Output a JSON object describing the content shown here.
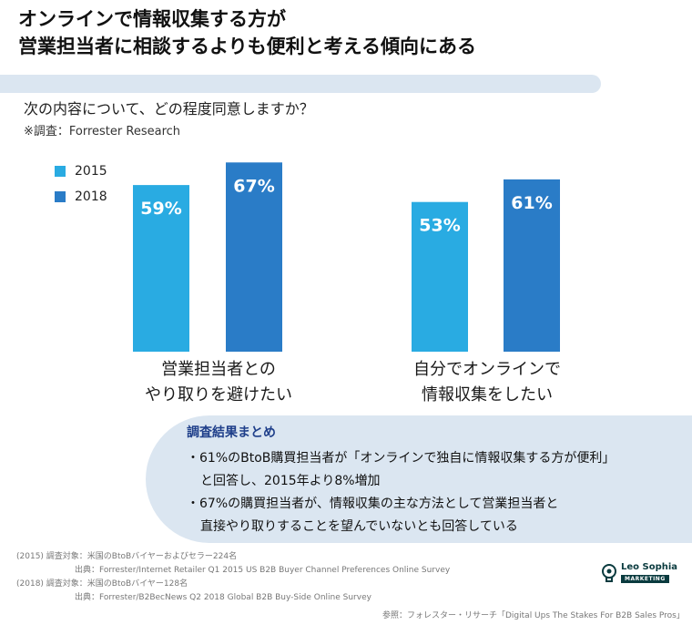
{
  "title": {
    "line1": "オンラインで情報収集する方が",
    "line2": "営業担当者に相談するよりも便利と考える傾向にある"
  },
  "question": "次の内容について、どの程度同意しますか？",
  "source_note": "※調査：Forrester Research",
  "colors": {
    "y2015": "#29abe2",
    "y2018": "#2a7cc7",
    "band": "#dbe6f1",
    "accent": "#1f3f8a"
  },
  "chart_data": {
    "type": "bar",
    "categories": [
      "営業担当者との\nやり取りを避けたい",
      "自分でオンラインで\n情報収集をしたい"
    ],
    "series": [
      {
        "name": "2015",
        "values": [
          59,
          53
        ],
        "labels": [
          "59%",
          "53%"
        ]
      },
      {
        "name": "2018",
        "values": [
          67,
          61
        ],
        "labels": [
          "67%",
          "61%"
        ]
      }
    ],
    "unit": "%",
    "legend": "top-left",
    "grid": false
  },
  "legend": {
    "y2015": "2015",
    "y2018": "2018"
  },
  "categories_text": {
    "cat1_line1": "営業担当者との",
    "cat1_line2": "やり取りを避けたい",
    "cat2_line1": "自分でオンラインで",
    "cat2_line2": "情報収集をしたい"
  },
  "summary": {
    "title": "調査結果まとめ",
    "b1_line1": "・61%のBtoB購買担当者が「オンラインで独自に情報収集する方が便利」",
    "b1_line2": "と回答し、2015年より8%増加",
    "b2_line1": "・67%の購買担当者が、情報収集の主な方法として営業担当者と",
    "b2_line2": "直接やり取りすることを望んでいないとも回答している"
  },
  "footnotes": {
    "f1": "(2015) 調査対象：米国のBtoBバイヤーおよびセラー224名",
    "f2": "出典：Forrester/Internet Retailer Q1 2015 US B2B Buyer Channel Preferences Online Survey",
    "f3": "(2018) 調査対象：米国のBtoBバイヤー128名",
    "f4": "出典：Forrester/B2BecNews Q2 2018 Global B2B Buy-Side Online Survey",
    "ref": "参照：フォレスター・リサーチ「Digital Ups The Stakes For B2B Sales Pros」"
  },
  "logo": {
    "name": "Leo Sophia",
    "tag": "MARKETING"
  }
}
